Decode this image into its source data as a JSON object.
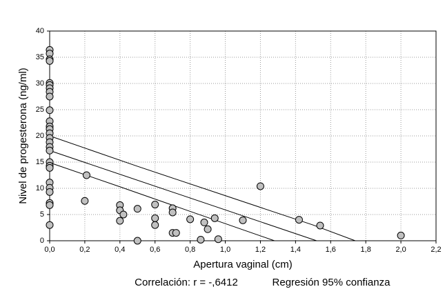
{
  "chart_data": {
    "type": "scatter",
    "xlabel": "Apertura vaginal (cm)",
    "ylabel": "Nivel de progesterona (ng/ml)",
    "footer_left": "Correlación: r = -,6412",
    "footer_right": "Regresión 95% confianza",
    "xlim": [
      0,
      2.2
    ],
    "ylim": [
      0,
      40
    ],
    "xticks": [
      {
        "value": 0,
        "label": "0,0"
      },
      {
        "value": 0.2,
        "label": "0,2"
      },
      {
        "value": 0.4,
        "label": "0,4"
      },
      {
        "value": 0.6,
        "label": "0,6"
      },
      {
        "value": 0.8,
        "label": "0,8"
      },
      {
        "value": 1.0,
        "label": "1,0"
      },
      {
        "value": 1.2,
        "label": "1,2"
      },
      {
        "value": 1.4,
        "label": "1,4"
      },
      {
        "value": 1.6,
        "label": "1,6"
      },
      {
        "value": 1.8,
        "label": "1,8"
      },
      {
        "value": 2.0,
        "label": "2,0"
      },
      {
        "value": 2.2,
        "label": "2,2"
      }
    ],
    "yticks": [
      0,
      5,
      10,
      15,
      20,
      25,
      30,
      35,
      40
    ],
    "grid": true,
    "color": "#c0c0c0",
    "x": [
      0,
      0,
      0,
      0,
      0,
      0,
      0,
      0,
      0,
      0,
      0,
      0,
      0,
      0,
      0,
      0,
      0,
      0,
      0,
      0,
      0,
      0,
      0,
      0,
      0,
      0,
      0,
      0.21,
      0.2,
      0.4,
      0.4,
      0.42,
      0.4,
      0.5,
      0.5,
      0.6,
      0.6,
      0.6,
      0.7,
      0.7,
      0.7,
      0.72,
      0.8,
      0.88,
      0.9,
      0.94,
      0.96,
      0.86,
      1.1,
      1.2,
      1.42,
      1.54,
      2.0
    ],
    "values": [
      36.4,
      35.7,
      34.6,
      34.3,
      30.1,
      29.7,
      29.1,
      28.4,
      27.5,
      24.9,
      22.8,
      21.8,
      21.3,
      20.5,
      19.6,
      18.8,
      17.9,
      17.2,
      15,
      14.3,
      13.9,
      11.1,
      10.1,
      9.3,
      7.2,
      6.8,
      3.0,
      12.5,
      7.6,
      6.8,
      5.8,
      5.0,
      3.8,
      6.1,
      0,
      6.9,
      4.3,
      3.0,
      6.2,
      5.4,
      1.5,
      1.5,
      4.1,
      3.5,
      2.2,
      4.3,
      0.3,
      0.2,
      3.9,
      10.4,
      4.0,
      2.9,
      1.0
    ],
    "lines": [
      {
        "x": [
          0,
          1.52
        ],
        "values": [
          17.2,
          0
        ]
      },
      {
        "x": [
          0,
          0.5,
          1.0,
          1.5,
          1.74
        ],
        "values": [
          20,
          14.2,
          8.6,
          3,
          0
        ]
      },
      {
        "x": [
          0,
          0.4,
          0.8,
          1.1,
          1.28
        ],
        "values": [
          14.9,
          10.3,
          5.6,
          2.1,
          0
        ]
      }
    ]
  }
}
